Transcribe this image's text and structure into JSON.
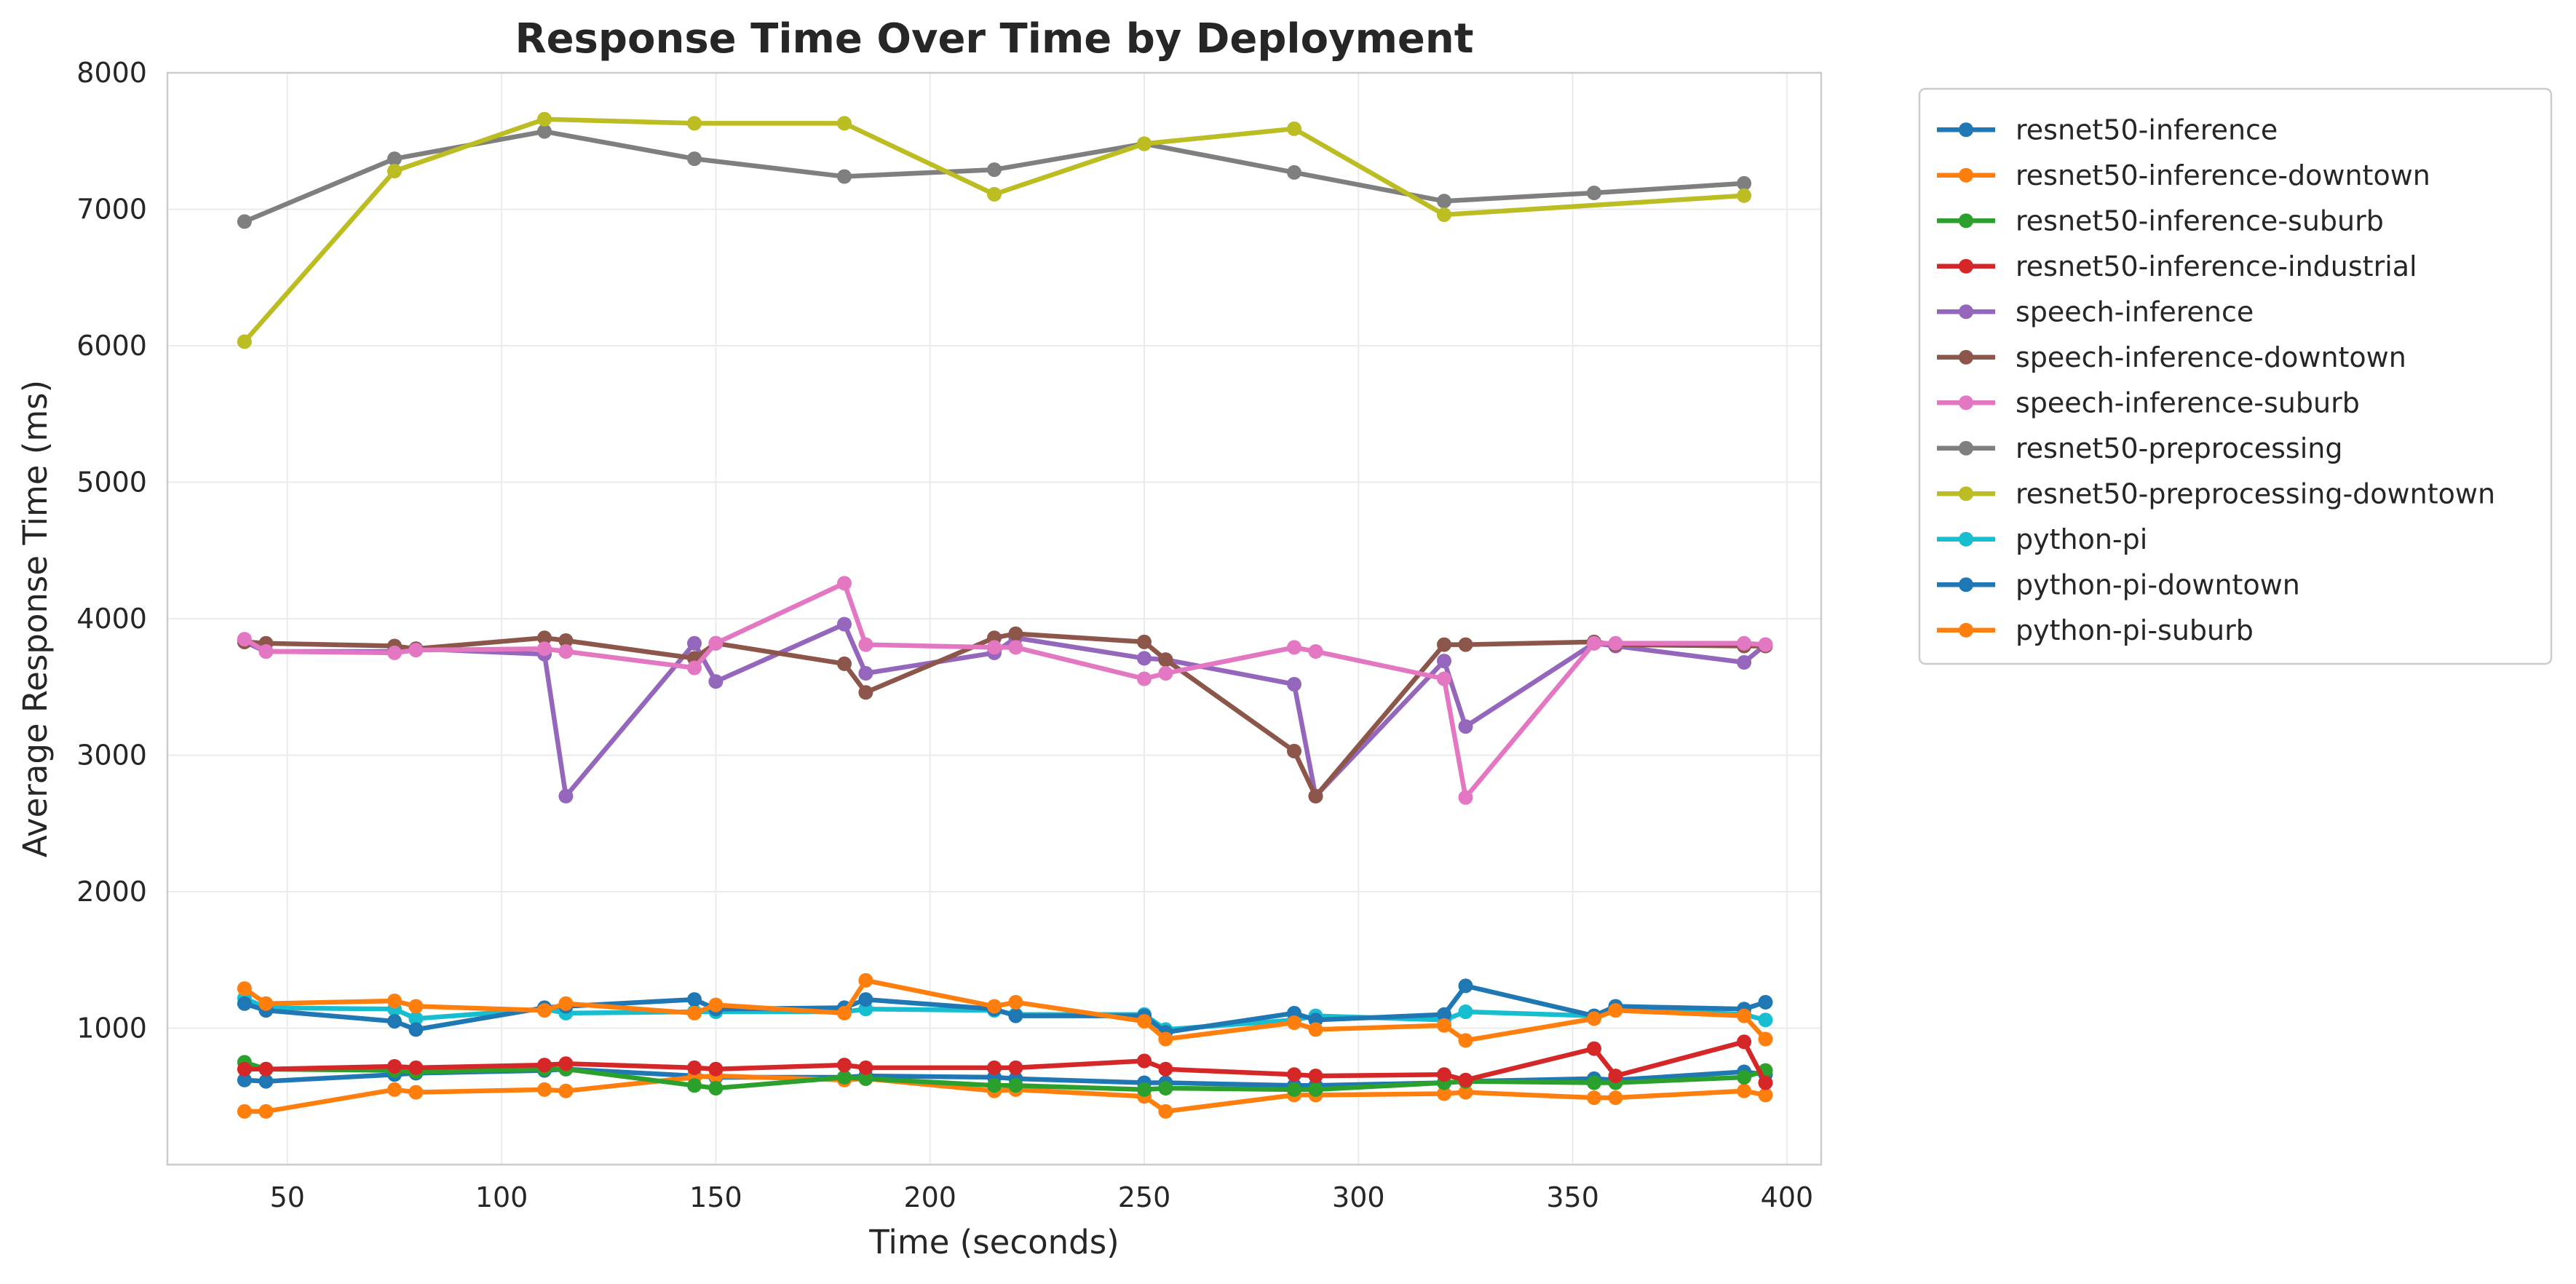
{
  "chart_data": {
    "type": "line",
    "title": "Response Time Over Time by Deployment",
    "xlabel": "Time (seconds)",
    "ylabel": "Average Response Time (ms)",
    "xlim": [
      22,
      408
    ],
    "ylim": [
      0,
      8000
    ],
    "xticks": [
      50,
      100,
      150,
      200,
      250,
      300,
      350,
      400
    ],
    "yticks": [
      1000,
      2000,
      3000,
      4000,
      5000,
      6000,
      7000,
      8000
    ],
    "grid": true,
    "legend_position": "outside-top-right",
    "series": [
      {
        "name": "resnet50-inference",
        "color": "#1f77b4",
        "x": [
          40,
          45,
          75,
          80,
          110,
          115,
          145,
          150,
          180,
          185,
          215,
          220,
          250,
          255,
          285,
          290,
          320,
          325,
          355,
          360,
          390,
          395
        ],
        "y": [
          620,
          610,
          660,
          670,
          690,
          700,
          650,
          640,
          640,
          650,
          640,
          630,
          600,
          600,
          580,
          580,
          600,
          610,
          630,
          620,
          680,
          660
        ]
      },
      {
        "name": "resnet50-inference-downtown",
        "color": "#ff7f0e",
        "x": [
          40,
          45,
          75,
          80,
          110,
          115,
          145,
          150,
          180,
          185,
          215,
          220,
          250,
          255,
          285,
          290,
          320,
          325,
          355,
          360,
          390,
          395
        ],
        "y": [
          390,
          390,
          550,
          530,
          550,
          540,
          640,
          650,
          620,
          630,
          540,
          550,
          500,
          390,
          510,
          510,
          520,
          530,
          490,
          490,
          540,
          510
        ]
      },
      {
        "name": "resnet50-inference-suburb",
        "color": "#2ca02c",
        "x": [
          40,
          45,
          75,
          80,
          110,
          115,
          145,
          150,
          180,
          185,
          215,
          220,
          250,
          255,
          285,
          290,
          320,
          325,
          355,
          360,
          390,
          395
        ],
        "y": [
          750,
          700,
          690,
          680,
          700,
          700,
          580,
          560,
          640,
          630,
          580,
          580,
          550,
          560,
          550,
          550,
          600,
          610,
          600,
          600,
          640,
          690
        ]
      },
      {
        "name": "resnet50-inference-industrial",
        "color": "#d62728",
        "x": [
          40,
          45,
          75,
          80,
          110,
          115,
          145,
          150,
          180,
          185,
          215,
          220,
          250,
          255,
          285,
          290,
          320,
          325,
          355,
          360,
          390,
          395
        ],
        "y": [
          700,
          700,
          720,
          710,
          730,
          740,
          710,
          700,
          730,
          710,
          710,
          710,
          760,
          700,
          660,
          650,
          660,
          620,
          850,
          650,
          900,
          600
        ]
      },
      {
        "name": "speech-inference",
        "color": "#9467bd",
        "x": [
          40,
          45,
          75,
          80,
          110,
          115,
          145,
          150,
          180,
          185,
          215,
          220,
          250,
          255,
          285,
          290,
          320,
          325,
          355,
          360,
          390,
          395
        ],
        "y": [
          3830,
          3760,
          3760,
          3780,
          3740,
          2700,
          3820,
          3540,
          3960,
          3600,
          3750,
          3860,
          3710,
          3700,
          3520,
          2700,
          3690,
          3210,
          3820,
          3800,
          3680,
          3810
        ]
      },
      {
        "name": "speech-inference-downtown",
        "color": "#8c564b",
        "x": [
          40,
          45,
          75,
          80,
          110,
          115,
          145,
          150,
          180,
          185,
          215,
          220,
          250,
          255,
          285,
          290,
          320,
          325,
          355,
          360,
          390,
          395
        ],
        "y": [
          3830,
          3820,
          3800,
          3780,
          3860,
          3840,
          3710,
          3820,
          3670,
          3460,
          3860,
          3890,
          3830,
          3700,
          3030,
          2700,
          3810,
          3810,
          3830,
          3810,
          3800,
          3800
        ]
      },
      {
        "name": "speech-inference-suburb",
        "color": "#e377c2",
        "x": [
          40,
          45,
          75,
          80,
          110,
          115,
          145,
          150,
          180,
          185,
          215,
          220,
          250,
          255,
          285,
          290,
          320,
          325,
          355,
          360,
          390,
          395
        ],
        "y": [
          3850,
          3760,
          3750,
          3770,
          3780,
          3760,
          3640,
          3820,
          4260,
          3810,
          3790,
          3790,
          3560,
          3600,
          3790,
          3760,
          3560,
          2690,
          3820,
          3820,
          3820,
          3810
        ]
      },
      {
        "name": "resnet50-preprocessing",
        "color": "#7f7f7f",
        "x": [
          40,
          75,
          110,
          145,
          180,
          215,
          250,
          285,
          320,
          355,
          390
        ],
        "y": [
          6910,
          7370,
          7570,
          7370,
          7240,
          7290,
          7480,
          7270,
          7060,
          7120,
          7190
        ]
      },
      {
        "name": "resnet50-preprocessing-downtown",
        "color": "#bcbd22",
        "x": [
          40,
          75,
          110,
          145,
          180,
          215,
          250,
          285,
          320,
          390
        ],
        "y": [
          6030,
          7280,
          7660,
          7630,
          7630,
          7110,
          7480,
          7590,
          6960,
          7100
        ]
      },
      {
        "name": "python-pi",
        "color": "#17becf",
        "x": [
          40,
          45,
          75,
          80,
          110,
          115,
          145,
          150,
          180,
          185,
          215,
          220,
          250,
          255,
          285,
          290,
          320,
          325,
          355,
          360,
          390,
          395
        ],
        "y": [
          1220,
          1150,
          1140,
          1070,
          1140,
          1110,
          1120,
          1120,
          1120,
          1140,
          1130,
          1100,
          1100,
          990,
          1060,
          1090,
          1060,
          1120,
          1090,
          1150,
          1100,
          1060
        ]
      },
      {
        "name": "python-pi-downtown",
        "color": "#1f77b4",
        "x": [
          40,
          45,
          75,
          80,
          110,
          115,
          145,
          150,
          180,
          185,
          215,
          220,
          250,
          255,
          285,
          290,
          320,
          325,
          355,
          360,
          390,
          395
        ],
        "y": [
          1180,
          1130,
          1050,
          990,
          1150,
          1160,
          1210,
          1140,
          1150,
          1210,
          1140,
          1090,
          1090,
          970,
          1110,
          1060,
          1100,
          1310,
          1090,
          1160,
          1140,
          1190
        ]
      },
      {
        "name": "python-pi-suburb",
        "color": "#ff7f0e",
        "x": [
          40,
          45,
          75,
          80,
          110,
          115,
          145,
          150,
          180,
          185,
          215,
          220,
          250,
          255,
          285,
          290,
          320,
          325,
          355,
          360,
          390,
          395
        ],
        "y": [
          1290,
          1180,
          1200,
          1160,
          1130,
          1180,
          1110,
          1170,
          1110,
          1350,
          1160,
          1190,
          1050,
          920,
          1040,
          990,
          1020,
          910,
          1070,
          1130,
          1090,
          920
        ]
      }
    ]
  }
}
